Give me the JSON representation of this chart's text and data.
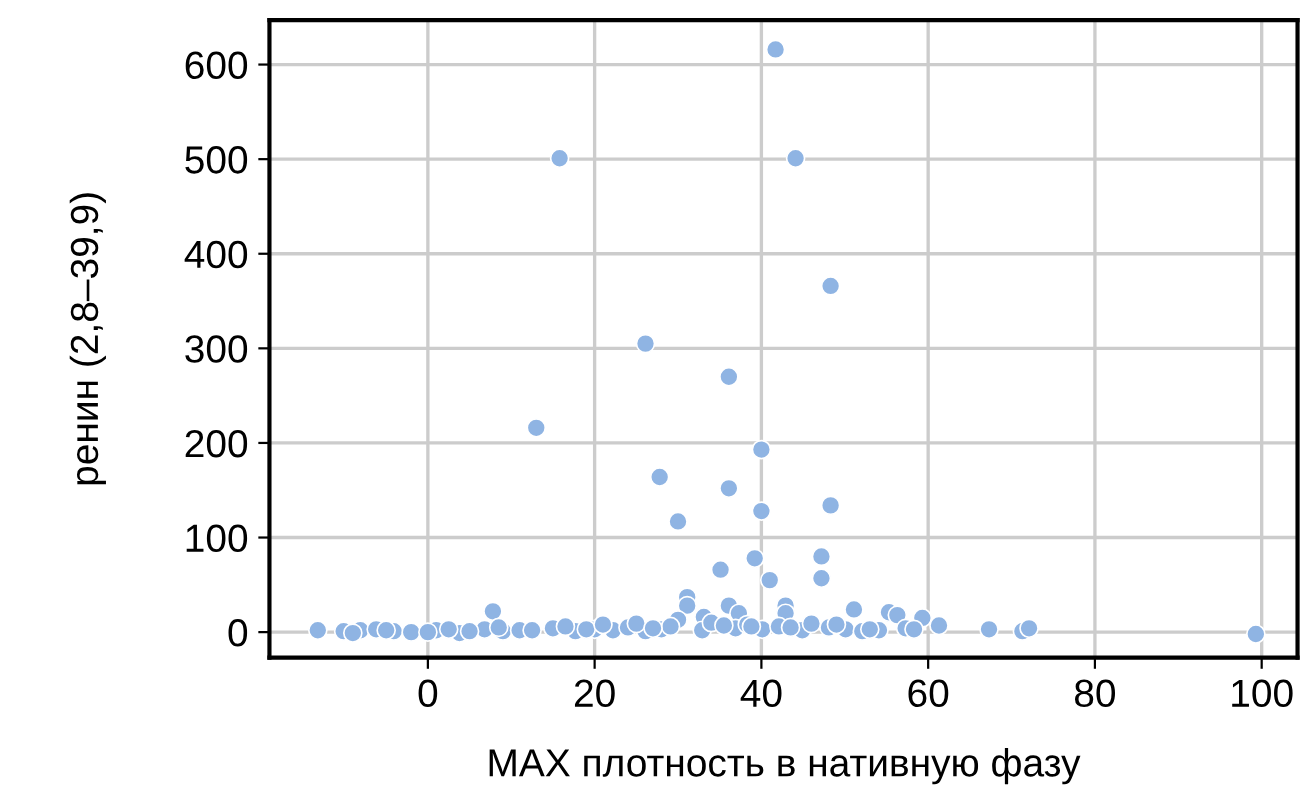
{
  "chart_data": {
    "type": "scatter",
    "xlabel": "MAX плотность в нативную фазу",
    "ylabel": "ренин (2,8–39,9)",
    "x": [
      41.7,
      15.8,
      44.1,
      48.3,
      26.1,
      36.1,
      13.0,
      40.0,
      27.8,
      36.1,
      40.0,
      48.3,
      30.0,
      39.2,
      35.1,
      47.2,
      47.2,
      41.0,
      7.8,
      31.1,
      31.1,
      33.1,
      36.1,
      37.3,
      30.0,
      42.9,
      42.9,
      51.1,
      55.3,
      56.3,
      59.3,
      -13.2,
      -10.1,
      -8.1,
      -6.2,
      -4.1,
      -2.0,
      1.0,
      3.8,
      6.8,
      9.0,
      11.0,
      15.0,
      17.7,
      20.0,
      22.2,
      24.0,
      26.1,
      28.0,
      29.1,
      32.9,
      36.9,
      38.3,
      40.1,
      42.1,
      44.9,
      48.1,
      50.1,
      52.1,
      54.1,
      57.3,
      58.3,
      61.3,
      67.3,
      71.3,
      72.1,
      99.3,
      -9.0,
      -5.0,
      0.0,
      2.5,
      5.0,
      8.5,
      12.5,
      16.5,
      19.0,
      21.0,
      25.0,
      27.0,
      34.0,
      35.5,
      38.8,
      43.5,
      46.0,
      49.0,
      53.0
    ],
    "values": [
      616,
      501,
      501,
      366,
      305,
      270,
      216,
      193,
      164,
      152,
      128,
      134,
      117,
      78,
      66,
      80,
      57,
      55,
      22,
      37,
      28,
      16,
      28,
      20,
      13,
      28,
      20,
      24,
      21,
      18,
      15,
      2,
      1,
      2,
      3,
      1,
      0,
      2,
      -1,
      3,
      1,
      2,
      4,
      1,
      3,
      2,
      5,
      1,
      3,
      6,
      2,
      4,
      8,
      3,
      6,
      2,
      5,
      3,
      1,
      2,
      4,
      3,
      7,
      3,
      1,
      4,
      -2,
      -1,
      2,
      0,
      3,
      1,
      5,
      2,
      6,
      3,
      8,
      9,
      4,
      10,
      7,
      6,
      5,
      9,
      8,
      3
    ],
    "color": "#8fb4e3",
    "marker": "circle",
    "grid": true,
    "xlim": [
      -19,
      104.3
    ],
    "xticks": [
      0,
      20,
      40,
      60,
      80,
      100
    ],
    "ylim": [
      -27,
      647
    ],
    "yticks": [
      0,
      100,
      200,
      300,
      400,
      500,
      600
    ]
  }
}
